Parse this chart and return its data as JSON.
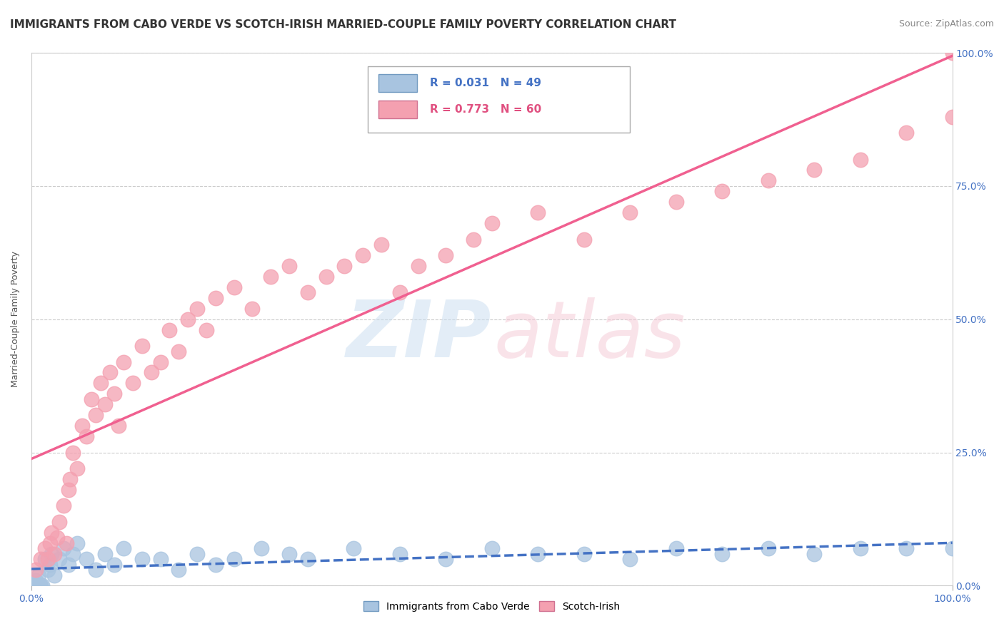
{
  "title": "IMMIGRANTS FROM CABO VERDE VS SCOTCH-IRISH MARRIED-COUPLE FAMILY POVERTY CORRELATION CHART",
  "source": "Source: ZipAtlas.com",
  "ylabel": "Married-Couple Family Poverty",
  "background_color": "#ffffff",
  "legend_labels": [
    "Immigrants from Cabo Verde",
    "Scotch-Irish"
  ],
  "cabo_verde_R": "R = 0.031",
  "cabo_verde_N": "N = 49",
  "scotch_irish_R": "R = 0.773",
  "scotch_irish_N": "N = 60",
  "cabo_verde_color": "#a8c4e0",
  "scotch_irish_color": "#f4a0b0",
  "cabo_verde_line_color": "#4472c4",
  "scotch_irish_line_color": "#f06090",
  "cabo_verde_scatter": [
    [
      0.001,
      0.0
    ],
    [
      0.002,
      0.0
    ],
    [
      0.003,
      0.0
    ],
    [
      0.004,
      0.0
    ],
    [
      0.005,
      0.01
    ],
    [
      0.006,
      0.0
    ],
    [
      0.007,
      0.0
    ],
    [
      0.008,
      0.02
    ],
    [
      0.009,
      0.0
    ],
    [
      0.01,
      0.0
    ],
    [
      0.012,
      0.0
    ],
    [
      0.015,
      0.05
    ],
    [
      0.018,
      0.03
    ],
    [
      0.02,
      0.04
    ],
    [
      0.022,
      0.06
    ],
    [
      0.025,
      0.02
    ],
    [
      0.03,
      0.05
    ],
    [
      0.035,
      0.07
    ],
    [
      0.04,
      0.04
    ],
    [
      0.045,
      0.06
    ],
    [
      0.05,
      0.08
    ],
    [
      0.06,
      0.05
    ],
    [
      0.07,
      0.03
    ],
    [
      0.08,
      0.06
    ],
    [
      0.09,
      0.04
    ],
    [
      0.1,
      0.07
    ],
    [
      0.12,
      0.05
    ],
    [
      0.14,
      0.05
    ],
    [
      0.16,
      0.03
    ],
    [
      0.18,
      0.06
    ],
    [
      0.2,
      0.04
    ],
    [
      0.22,
      0.05
    ],
    [
      0.25,
      0.07
    ],
    [
      0.28,
      0.06
    ],
    [
      0.3,
      0.05
    ],
    [
      0.35,
      0.07
    ],
    [
      0.4,
      0.06
    ],
    [
      0.45,
      0.05
    ],
    [
      0.5,
      0.07
    ],
    [
      0.55,
      0.06
    ],
    [
      0.6,
      0.06
    ],
    [
      0.65,
      0.05
    ],
    [
      0.7,
      0.07
    ],
    [
      0.75,
      0.06
    ],
    [
      0.8,
      0.07
    ],
    [
      0.85,
      0.06
    ],
    [
      0.9,
      0.07
    ],
    [
      0.95,
      0.07
    ],
    [
      1.0,
      0.07
    ]
  ],
  "scotch_irish_scatter": [
    [
      0.005,
      0.03
    ],
    [
      0.01,
      0.05
    ],
    [
      0.015,
      0.07
    ],
    [
      0.018,
      0.05
    ],
    [
      0.02,
      0.08
    ],
    [
      0.022,
      0.1
    ],
    [
      0.025,
      0.06
    ],
    [
      0.028,
      0.09
    ],
    [
      0.03,
      0.12
    ],
    [
      0.035,
      0.15
    ],
    [
      0.038,
      0.08
    ],
    [
      0.04,
      0.18
    ],
    [
      0.042,
      0.2
    ],
    [
      0.045,
      0.25
    ],
    [
      0.05,
      0.22
    ],
    [
      0.055,
      0.3
    ],
    [
      0.06,
      0.28
    ],
    [
      0.065,
      0.35
    ],
    [
      0.07,
      0.32
    ],
    [
      0.075,
      0.38
    ],
    [
      0.08,
      0.34
    ],
    [
      0.085,
      0.4
    ],
    [
      0.09,
      0.36
    ],
    [
      0.095,
      0.3
    ],
    [
      0.1,
      0.42
    ],
    [
      0.11,
      0.38
    ],
    [
      0.12,
      0.45
    ],
    [
      0.13,
      0.4
    ],
    [
      0.14,
      0.42
    ],
    [
      0.15,
      0.48
    ],
    [
      0.16,
      0.44
    ],
    [
      0.17,
      0.5
    ],
    [
      0.18,
      0.52
    ],
    [
      0.19,
      0.48
    ],
    [
      0.2,
      0.54
    ],
    [
      0.22,
      0.56
    ],
    [
      0.24,
      0.52
    ],
    [
      0.26,
      0.58
    ],
    [
      0.28,
      0.6
    ],
    [
      0.3,
      0.55
    ],
    [
      0.32,
      0.58
    ],
    [
      0.34,
      0.6
    ],
    [
      0.36,
      0.62
    ],
    [
      0.38,
      0.64
    ],
    [
      0.4,
      0.55
    ],
    [
      0.42,
      0.6
    ],
    [
      0.45,
      0.62
    ],
    [
      0.48,
      0.65
    ],
    [
      0.5,
      0.68
    ],
    [
      0.55,
      0.7
    ],
    [
      0.6,
      0.65
    ],
    [
      0.65,
      0.7
    ],
    [
      0.7,
      0.72
    ],
    [
      0.75,
      0.74
    ],
    [
      0.8,
      0.76
    ],
    [
      0.85,
      0.78
    ],
    [
      0.9,
      0.8
    ],
    [
      0.95,
      0.85
    ],
    [
      1.0,
      0.88
    ],
    [
      1.0,
      1.0
    ]
  ],
  "xlim": [
    0,
    1.0
  ],
  "ylim": [
    0,
    1.0
  ],
  "xtick_labels": [
    "0.0%",
    "100.0%"
  ],
  "ytick_labels": [
    "0.0%",
    "25.0%",
    "50.0%",
    "75.0%",
    "100.0%"
  ],
  "ytick_positions": [
    0.0,
    0.25,
    0.5,
    0.75,
    1.0
  ],
  "grid_color": "#cccccc"
}
